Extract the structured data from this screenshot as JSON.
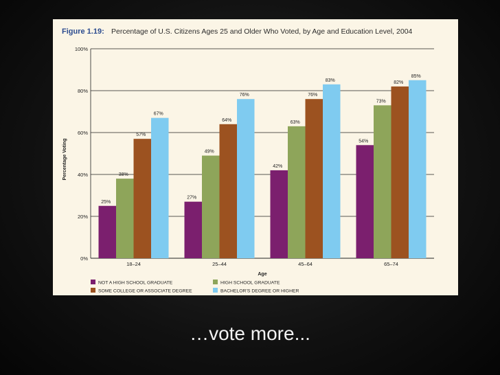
{
  "slide": {
    "caption": "…vote more..."
  },
  "chart_data": {
    "type": "bar",
    "title_prefix": "Figure 1.19:",
    "title": "Percentage of U.S. Citizens Ages 25 and Older Who Voted, by Age and Education Level, 2004",
    "xlabel": "Age",
    "ylabel": "Percentage Voting",
    "ylim": [
      0,
      100
    ],
    "yticks": [
      0,
      20,
      40,
      60,
      80,
      100
    ],
    "ytick_labels": [
      "0%",
      "20%",
      "40%",
      "60%",
      "80%",
      "100%"
    ],
    "categories": [
      "18–24",
      "25–44",
      "45–64",
      "65–74"
    ],
    "grid": true,
    "legend_position": "bottom",
    "series": [
      {
        "name": "NOT A HIGH SCHOOL GRADUATE",
        "color": "#7b1f6e",
        "values": [
          25,
          27,
          42,
          54
        ]
      },
      {
        "name": "HIGH SCHOOL GRADUATE",
        "color": "#8ea55a",
        "values": [
          38,
          49,
          63,
          73
        ]
      },
      {
        "name": "SOME COLLEGE OR ASSOCIATE DEGREE",
        "color": "#9c5220",
        "values": [
          57,
          64,
          76,
          82
        ]
      },
      {
        "name": "BACHELOR’S DEGREE OR HIGHER",
        "color": "#7fcbf0",
        "values": [
          67,
          76,
          83,
          85
        ]
      }
    ]
  }
}
